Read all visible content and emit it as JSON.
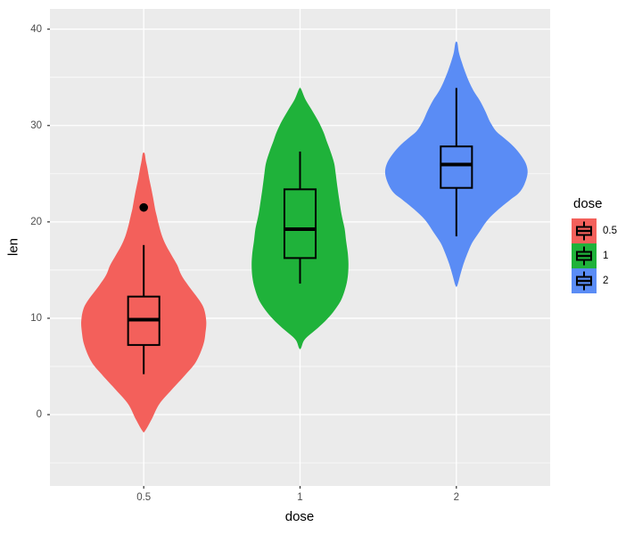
{
  "chart_data": {
    "type": "violin",
    "title": "",
    "xlabel": "dose",
    "ylabel": "len",
    "categories": [
      "0.5",
      "1",
      "2"
    ],
    "x_axis": {
      "positions": [
        1,
        2,
        3
      ],
      "range": [
        0.4,
        3.6
      ],
      "grid": true
    },
    "y_axis": {
      "ticks": [
        0,
        10,
        20,
        30,
        40
      ],
      "minor_ticks": [
        -5,
        5,
        15,
        25,
        35
      ],
      "range": [
        -7.4,
        42.1
      ],
      "grid": true
    },
    "colors": {
      "panel_bg": "#EBEBEB",
      "grid": "#FFFFFF",
      "tick_mark": "#333333",
      "tick_label": "#4D4D4D",
      "axis_title": "#000000",
      "box_stroke": "#000000"
    },
    "legend": {
      "title": "dose",
      "position": "right",
      "entries": [
        {
          "label": "0.5",
          "color": "#F3605B"
        },
        {
          "label": "1",
          "color": "#1FB23A"
        },
        {
          "label": "2",
          "color": "#5A8CF5"
        }
      ]
    },
    "series": [
      {
        "label": "0.5",
        "color": "#F3605B",
        "box": {
          "whisker_low": 4.2,
          "q1": 7.23,
          "median": 9.85,
          "q3": 12.25,
          "whisker_high": 17.6
        },
        "outliers": [
          21.5
        ],
        "violin_profile": [
          [
            -1.7,
            0.008
          ],
          [
            -0.5,
            0.05
          ],
          [
            1.1,
            0.1
          ],
          [
            2.6,
            0.18
          ],
          [
            4.2,
            0.27
          ],
          [
            5.5,
            0.335
          ],
          [
            7.2,
            0.38
          ],
          [
            8.5,
            0.395
          ],
          [
            9.7,
            0.4
          ],
          [
            11.0,
            0.385
          ],
          [
            12.0,
            0.35
          ],
          [
            13.4,
            0.285
          ],
          [
            14.5,
            0.24
          ],
          [
            15.5,
            0.215
          ],
          [
            16.5,
            0.18
          ],
          [
            17.5,
            0.145
          ],
          [
            18.5,
            0.118
          ],
          [
            19.6,
            0.098
          ],
          [
            20.5,
            0.085
          ],
          [
            21.4,
            0.072
          ],
          [
            22.5,
            0.06
          ],
          [
            23.5,
            0.048
          ],
          [
            24.5,
            0.035
          ],
          [
            25.5,
            0.024
          ],
          [
            26.3,
            0.014
          ],
          [
            27.1,
            0.006
          ]
        ]
      },
      {
        "label": "1",
        "color": "#1FB23A",
        "box": {
          "whisker_low": 13.6,
          "q1": 16.25,
          "median": 19.25,
          "q3": 23.38,
          "whisker_high": 27.3
        },
        "outliers": [],
        "violin_profile": [
          [
            6.9,
            0.006
          ],
          [
            7.8,
            0.03
          ],
          [
            8.8,
            0.1
          ],
          [
            9.7,
            0.16
          ],
          [
            10.6,
            0.21
          ],
          [
            11.8,
            0.26
          ],
          [
            13.1,
            0.29
          ],
          [
            14.3,
            0.305
          ],
          [
            15.6,
            0.31
          ],
          [
            16.8,
            0.305
          ],
          [
            18.0,
            0.295
          ],
          [
            19.3,
            0.285
          ],
          [
            20.8,
            0.265
          ],
          [
            22.4,
            0.25
          ],
          [
            23.5,
            0.24
          ],
          [
            25.0,
            0.228
          ],
          [
            26.1,
            0.218
          ],
          [
            27.3,
            0.195
          ],
          [
            28.4,
            0.17
          ],
          [
            29.4,
            0.148
          ],
          [
            30.5,
            0.115
          ],
          [
            31.7,
            0.072
          ],
          [
            32.7,
            0.035
          ],
          [
            33.8,
            0.006
          ]
        ]
      },
      {
        "label": "2",
        "color": "#5A8CF5",
        "box": {
          "whisker_low": 18.5,
          "q1": 23.53,
          "median": 25.95,
          "q3": 27.83,
          "whisker_high": 33.9
        },
        "outliers": [],
        "violin_profile": [
          [
            13.4,
            0.006
          ],
          [
            14.5,
            0.025
          ],
          [
            15.6,
            0.045
          ],
          [
            16.7,
            0.07
          ],
          [
            17.8,
            0.1
          ],
          [
            18.9,
            0.145
          ],
          [
            20.2,
            0.2
          ],
          [
            21.3,
            0.27
          ],
          [
            22.3,
            0.345
          ],
          [
            23.0,
            0.4
          ],
          [
            23.9,
            0.435
          ],
          [
            25.0,
            0.455
          ],
          [
            25.9,
            0.448
          ],
          [
            26.8,
            0.418
          ],
          [
            27.8,
            0.368
          ],
          [
            28.7,
            0.305
          ],
          [
            29.4,
            0.255
          ],
          [
            30.4,
            0.215
          ],
          [
            31.5,
            0.185
          ],
          [
            32.6,
            0.15
          ],
          [
            33.6,
            0.11
          ],
          [
            34.6,
            0.08
          ],
          [
            35.6,
            0.055
          ],
          [
            36.6,
            0.034
          ],
          [
            37.6,
            0.016
          ],
          [
            38.6,
            0.006
          ]
        ]
      }
    ]
  }
}
